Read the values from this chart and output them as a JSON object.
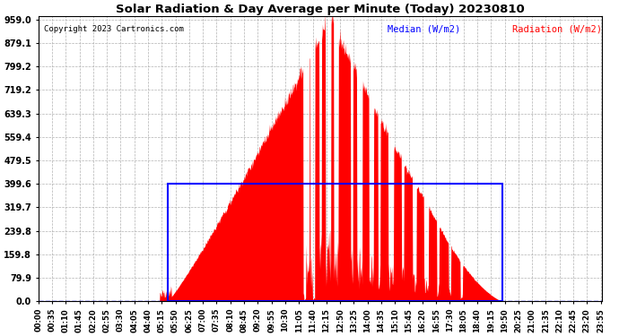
{
  "title": "Solar Radiation & Day Average per Minute (Today) 20230810",
  "copyright": "Copyright 2023 Cartronics.com",
  "legend_median": "Median (W/m2)",
  "legend_radiation": "Radiation (W/m2)",
  "yticks": [
    0.0,
    79.9,
    159.8,
    239.8,
    319.7,
    399.6,
    479.5,
    559.4,
    639.3,
    719.2,
    799.2,
    879.1,
    959.0
  ],
  "ymax": 959.0,
  "ymin": 0.0,
  "median_value": 399.6,
  "fill_color": "#FF0000",
  "median_color": "#0000FF",
  "background_color": "#FFFFFF",
  "grid_color": "#AAAAAA",
  "title_color": "#000000",
  "copyright_color": "#000000",
  "sunrise_minute": 330,
  "sunset_minute": 1185,
  "peak_minute": 745,
  "peak_value": 959.0,
  "xtick_labels": [
    "00:00",
    "00:35",
    "01:10",
    "01:45",
    "02:20",
    "02:55",
    "03:30",
    "04:05",
    "04:40",
    "05:15",
    "05:50",
    "06:25",
    "07:00",
    "07:35",
    "08:10",
    "08:45",
    "09:20",
    "09:55",
    "10:30",
    "11:05",
    "11:40",
    "12:15",
    "12:50",
    "13:25",
    "14:00",
    "14:35",
    "15:10",
    "15:45",
    "16:20",
    "16:55",
    "17:30",
    "18:05",
    "18:40",
    "19:15",
    "19:50",
    "20:25",
    "21:00",
    "21:35",
    "22:10",
    "22:45",
    "23:20",
    "23:55"
  ],
  "xtick_minutes": [
    0,
    35,
    70,
    105,
    140,
    175,
    210,
    245,
    280,
    315,
    350,
    385,
    420,
    455,
    490,
    525,
    560,
    595,
    630,
    665,
    700,
    735,
    770,
    805,
    840,
    875,
    910,
    945,
    980,
    1015,
    1050,
    1085,
    1120,
    1155,
    1190,
    1225,
    1260,
    1295,
    1330,
    1365,
    1400,
    1435
  ],
  "figwidth": 6.9,
  "figheight": 3.75,
  "dpi": 100
}
